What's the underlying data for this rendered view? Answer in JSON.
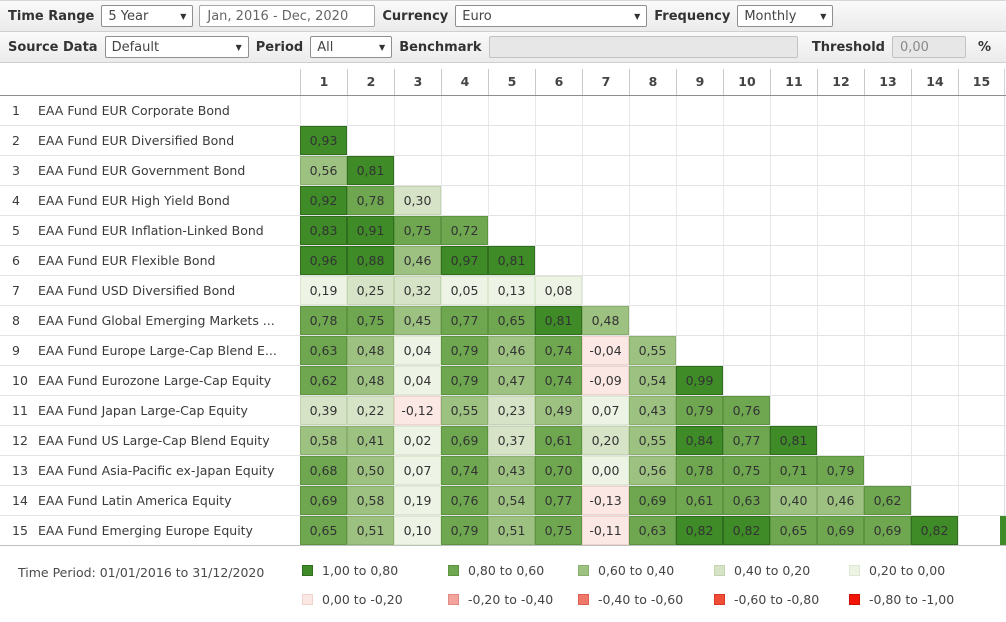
{
  "toolbar1": {
    "time_range_label": "Time Range",
    "time_range_value": "5 Year",
    "date_range_value": "Jan, 2016 - Dec, 2020",
    "currency_label": "Currency",
    "currency_value": "Euro",
    "frequency_label": "Frequency",
    "frequency_value": "Monthly"
  },
  "toolbar2": {
    "source_data_label": "Source Data",
    "source_data_value": "Default",
    "period_label": "Period",
    "period_value": "All",
    "benchmark_label": "Benchmark",
    "benchmark_value": "",
    "threshold_label": "Threshold",
    "threshold_value": "0,00",
    "threshold_unit": "%"
  },
  "buckets": {
    "b5": {
      "bg": "#3E8B27",
      "border": "#2E6E1C"
    },
    "b4": {
      "bg": "#6FA750",
      "border": "#5C9442"
    },
    "b3": {
      "bg": "#9DC181",
      "border": "#88AF6C"
    },
    "b2": {
      "bg": "#D6E3C7",
      "border": "#C3D5B0"
    },
    "b1": {
      "bg": "#EDF3E5",
      "border": "#DCE8D0"
    },
    "n1": {
      "bg": "#FBE7E3",
      "border": "#F0D2CD"
    },
    "n2": {
      "bg": "#F2A49C",
      "border": "#E08A82"
    },
    "n3": {
      "bg": "#F0786A",
      "border": "#DB5F52"
    },
    "n4": {
      "bg": "#F04C38",
      "border": "#D83A28"
    },
    "n5": {
      "bg": "#F21505",
      "border": "#C91203"
    }
  },
  "matrix": {
    "columns": [
      "1",
      "2",
      "3",
      "4",
      "5",
      "6",
      "7",
      "8",
      "9",
      "10",
      "11",
      "12",
      "13",
      "14",
      "15"
    ],
    "rows": [
      {
        "num": "1",
        "name": "EAA Fund EUR Corporate Bond",
        "values": []
      },
      {
        "num": "2",
        "name": "EAA Fund EUR Diversified Bond",
        "values": [
          "0,93"
        ]
      },
      {
        "num": "3",
        "name": "EAA Fund EUR Government Bond",
        "values": [
          "0,56",
          "0,81"
        ]
      },
      {
        "num": "4",
        "name": "EAA Fund EUR High Yield Bond",
        "values": [
          "0,92",
          "0,78",
          "0,30"
        ]
      },
      {
        "num": "5",
        "name": "EAA Fund EUR Inflation-Linked Bond",
        "values": [
          "0,83",
          "0,91",
          "0,75",
          "0,72"
        ]
      },
      {
        "num": "6",
        "name": "EAA Fund EUR Flexible Bond",
        "values": [
          "0,96",
          "0,88",
          "0,46",
          "0,97",
          "0,81"
        ]
      },
      {
        "num": "7",
        "name": "EAA Fund USD Diversified Bond",
        "values": [
          "0,19",
          "0,25",
          "0,32",
          "0,05",
          "0,13",
          "0,08"
        ]
      },
      {
        "num": "8",
        "name": "EAA Fund Global Emerging Markets ...",
        "values": [
          "0,78",
          "0,75",
          "0,45",
          "0,77",
          "0,65",
          "0,81",
          "0,48"
        ]
      },
      {
        "num": "9",
        "name": "EAA Fund Europe Large-Cap Blend E...",
        "values": [
          "0,63",
          "0,48",
          "0,04",
          "0,79",
          "0,46",
          "0,74",
          "-0,04",
          "0,55"
        ]
      },
      {
        "num": "10",
        "name": "EAA Fund Eurozone Large-Cap Equity",
        "values": [
          "0,62",
          "0,48",
          "0,04",
          "0,79",
          "0,47",
          "0,74",
          "-0,09",
          "0,54",
          "0,99"
        ]
      },
      {
        "num": "11",
        "name": "EAA Fund Japan Large-Cap Equity",
        "values": [
          "0,39",
          "0,22",
          "-0,12",
          "0,55",
          "0,23",
          "0,49",
          "0,07",
          "0,43",
          "0,79",
          "0,76"
        ]
      },
      {
        "num": "12",
        "name": "EAA Fund US Large-Cap Blend Equity",
        "values": [
          "0,58",
          "0,41",
          "0,02",
          "0,69",
          "0,37",
          "0,61",
          "0,20",
          "0,55",
          "0,84",
          "0,77",
          "0,81"
        ]
      },
      {
        "num": "13",
        "name": "EAA Fund Asia-Pacific ex-Japan Equity",
        "values": [
          "0,68",
          "0,50",
          "0,07",
          "0,74",
          "0,43",
          "0,70",
          "0,00",
          "0,56",
          "0,78",
          "0,75",
          "0,71",
          "0,79"
        ]
      },
      {
        "num": "14",
        "name": "EAA Fund Latin America Equity",
        "values": [
          "0,69",
          "0,58",
          "0,19",
          "0,76",
          "0,54",
          "0,77",
          "-0,13",
          "0,69",
          "0,61",
          "0,63",
          "0,40",
          "0,46",
          "0,62"
        ]
      },
      {
        "num": "15",
        "name": "EAA Fund Emerging Europe Equity",
        "values": [
          "0,65",
          "0,51",
          "0,10",
          "0,79",
          "0,51",
          "0,75",
          "-0,11",
          "0,63",
          "0,82",
          "0,82",
          "0,65",
          "0,69",
          "0,69",
          "0,82"
        ]
      }
    ]
  },
  "footer": {
    "time_period": "Time Period: 01/01/2016 to 31/12/2020",
    "legend": [
      {
        "label": "1,00 to 0,80",
        "bucket": "b5"
      },
      {
        "label": "0,80 to 0,60",
        "bucket": "b4"
      },
      {
        "label": "0,60 to 0,40",
        "bucket": "b3"
      },
      {
        "label": "0,40 to 0,20",
        "bucket": "b2"
      },
      {
        "label": "0,20 to 0,00",
        "bucket": "b1"
      },
      {
        "label": "0,00 to -0,20",
        "bucket": "n1"
      },
      {
        "label": "-0,20 to -0,40",
        "bucket": "n2"
      },
      {
        "label": "-0,40 to -0,60",
        "bucket": "n3"
      },
      {
        "label": "-0,60 to -0,80",
        "bucket": "n4"
      },
      {
        "label": "-0,80 to -1,00",
        "bucket": "n5"
      }
    ]
  }
}
